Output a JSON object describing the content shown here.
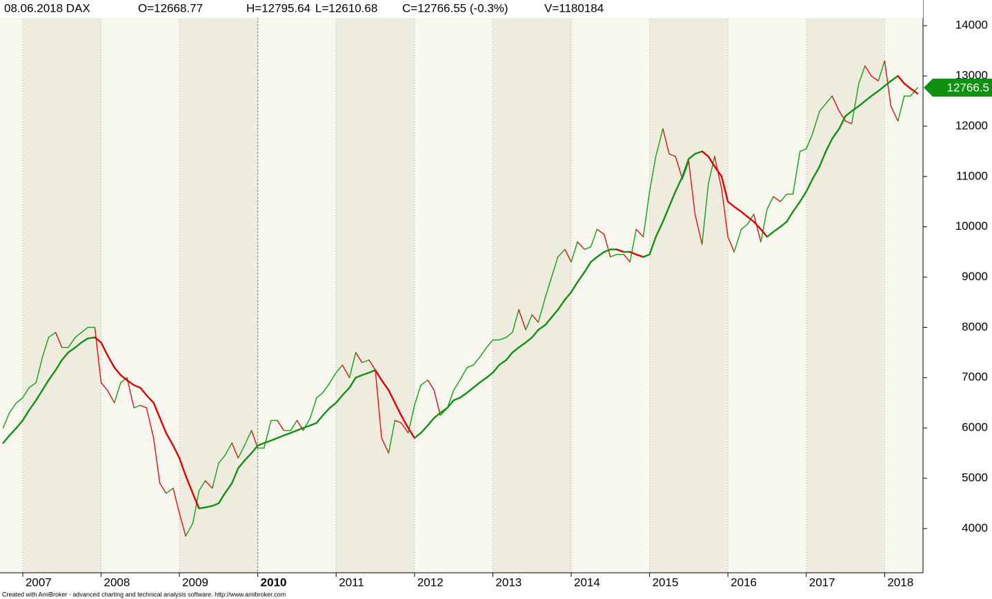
{
  "chart_data": {
    "type": "line",
    "title": "08.06.2018 DAX",
    "info": [
      "O=12668.77",
      "H=12795.64",
      "L=12610.68",
      "C=12766.55 (-0.3%)",
      "V=1180184"
    ],
    "footer": "Created with AmiBroker - advanced charting and technical analysis software. http://www.amibroker.com",
    "last_label": "12766.5",
    "last_label_color": "#109010",
    "band_colors": [
      "#f7f7ef",
      "#eeecdf"
    ],
    "xlim": [
      2006.71,
      2018.49
    ],
    "xticks": [
      2007,
      2008,
      2009,
      2010,
      2011,
      2012,
      2013,
      2014,
      2015,
      2016,
      2017,
      2018
    ],
    "ylim": [
      3120,
      14510
    ],
    "yticks": [
      4000,
      5000,
      6000,
      7000,
      8000,
      9000,
      10000,
      11000,
      12000,
      13000,
      14000
    ],
    "x": [
      2006.75,
      2006.83,
      2006.92,
      2007,
      2007.08,
      2007.17,
      2007.25,
      2007.33,
      2007.42,
      2007.5,
      2007.58,
      2007.67,
      2007.75,
      2007.83,
      2007.92,
      2008,
      2008.08,
      2008.17,
      2008.25,
      2008.33,
      2008.42,
      2008.5,
      2008.58,
      2008.67,
      2008.75,
      2008.83,
      2008.92,
      2009,
      2009.08,
      2009.17,
      2009.25,
      2009.33,
      2009.42,
      2009.5,
      2009.58,
      2009.67,
      2009.75,
      2009.83,
      2009.92,
      2010,
      2010.08,
      2010.17,
      2010.25,
      2010.33,
      2010.42,
      2010.5,
      2010.58,
      2010.67,
      2010.75,
      2010.83,
      2010.92,
      2011,
      2011.08,
      2011.17,
      2011.25,
      2011.33,
      2011.42,
      2011.5,
      2011.58,
      2011.67,
      2011.75,
      2011.83,
      2011.92,
      2012,
      2012.08,
      2012.17,
      2012.25,
      2012.33,
      2012.42,
      2012.5,
      2012.58,
      2012.67,
      2012.75,
      2012.83,
      2012.92,
      2013,
      2013.08,
      2013.17,
      2013.25,
      2013.33,
      2013.42,
      2013.5,
      2013.58,
      2013.67,
      2013.75,
      2013.83,
      2013.92,
      2014,
      2014.08,
      2014.17,
      2014.25,
      2014.33,
      2014.42,
      2014.5,
      2014.58,
      2014.67,
      2014.75,
      2014.83,
      2014.92,
      2015,
      2015.08,
      2015.17,
      2015.25,
      2015.33,
      2015.42,
      2015.5,
      2015.58,
      2015.67,
      2015.75,
      2015.83,
      2015.92,
      2016,
      2016.08,
      2016.17,
      2016.25,
      2016.33,
      2016.42,
      2016.5,
      2016.58,
      2016.67,
      2016.75,
      2016.83,
      2016.92,
      2017,
      2017.08,
      2017.17,
      2017.25,
      2017.33,
      2017.42,
      2017.5,
      2017.58,
      2017.67,
      2017.75,
      2017.83,
      2017.92,
      2018,
      2018.08,
      2018.17,
      2018.25,
      2018.33,
      2018.42
    ],
    "series": [
      {
        "up_color": "#10a010",
        "down_color": "#e01010",
        "values": [
          6000,
          6300,
          6500,
          6600,
          6800,
          6900,
          7400,
          7800,
          7900,
          7600,
          7600,
          7800,
          7900,
          8000,
          8000,
          6900,
          6750,
          6500,
          6900,
          7000,
          6400,
          6450,
          6400,
          5800,
          4900,
          4700,
          4800,
          4300,
          3850,
          4100,
          4750,
          4950,
          4800,
          5300,
          5450,
          5700,
          5400,
          5650,
          5950,
          5600,
          5600,
          6150,
          6150,
          5950,
          5950,
          6150,
          5950,
          6200,
          6600,
          6700,
          6900,
          7100,
          7250,
          7000,
          7500,
          7300,
          7350,
          7150,
          5800,
          5500,
          6150,
          6100,
          5900,
          6450,
          6850,
          6950,
          6750,
          6250,
          6400,
          6750,
          6950,
          7200,
          7250,
          7400,
          7600,
          7750,
          7750,
          7800,
          7900,
          8350,
          7950,
          8250,
          8100,
          8600,
          9000,
          9400,
          9550,
          9300,
          9700,
          9550,
          9600,
          9950,
          9850,
          9400,
          9450,
          9450,
          9300,
          9950,
          9800,
          10700,
          11400,
          11950,
          11450,
          11400,
          10950,
          11300,
          10250,
          9650,
          10850,
          11400,
          10750,
          9800,
          9500,
          9950,
          10050,
          10250,
          9700,
          10350,
          10600,
          10500,
          10650,
          10650,
          11500,
          11550,
          11850,
          12300,
          12450,
          12600,
          12300,
          12100,
          12050,
          12850,
          13200,
          13000,
          12900,
          13300,
          12400,
          12100,
          12600,
          12600,
          12766.55
        ]
      },
      {
        "up_color": "#109010",
        "down_color": "#e00000",
        "values": [
          5700,
          5850,
          6000,
          6150,
          6350,
          6550,
          6750,
          6950,
          7150,
          7350,
          7500,
          7600,
          7700,
          7780,
          7800,
          7700,
          7450,
          7200,
          7050,
          6950,
          6850,
          6800,
          6650,
          6500,
          6200,
          5900,
          5650,
          5400,
          5050,
          4700,
          4400,
          4420,
          4450,
          4500,
          4700,
          4900,
          5200,
          5350,
          5500,
          5650,
          5700,
          5750,
          5800,
          5850,
          5900,
          5950,
          6000,
          6050,
          6100,
          6250,
          6400,
          6500,
          6650,
          6800,
          7000,
          7050,
          7100,
          7150,
          6950,
          6750,
          6500,
          6250,
          6000,
          5800,
          5900,
          6050,
          6200,
          6300,
          6400,
          6550,
          6600,
          6700,
          6800,
          6900,
          7000,
          7100,
          7250,
          7350,
          7500,
          7600,
          7700,
          7800,
          7950,
          8050,
          8200,
          8350,
          8550,
          8700,
          8900,
          9100,
          9300,
          9400,
          9500,
          9550,
          9550,
          9500,
          9500,
          9450,
          9400,
          9450,
          9800,
          10100,
          10400,
          10700,
          11000,
          11350,
          11450,
          11500,
          11400,
          11200,
          11000,
          10500,
          10400,
          10300,
          10200,
          10100,
          9950,
          9800,
          9900,
          10000,
          10100,
          10300,
          10500,
          10700,
          10950,
          11200,
          11500,
          11750,
          11950,
          12200,
          12300,
          12400,
          12500,
          12600,
          12700,
          12800,
          12900,
          13000,
          12850,
          12750,
          12650
        ]
      }
    ]
  }
}
